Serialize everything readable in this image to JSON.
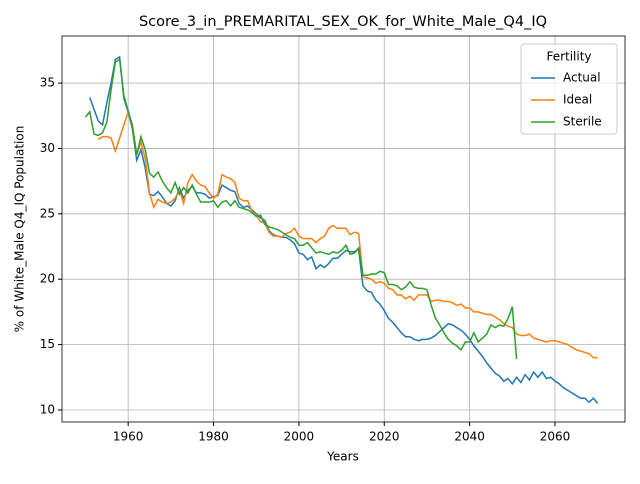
{
  "chart_data": {
    "type": "line",
    "title": "Score_3_in_PREMARITAL_SEX_OK_for_White_Male_Q4_IQ",
    "x_label": "Years",
    "y_label": "% of White_Male Q4_IQ Population",
    "legend_title": "Fertility",
    "legend_position": "upper right",
    "grid": true,
    "xlim": [
      1944.5,
      2076.4
    ],
    "ylim": [
      9.08,
      38.6
    ],
    "xticks": [
      1960,
      1980,
      2000,
      2020,
      2040,
      2060
    ],
    "yticks": [
      10,
      15,
      20,
      25,
      30,
      35
    ],
    "x": [
      1950,
      1951,
      1952,
      1953,
      1954,
      1955,
      1956,
      1957,
      1958,
      1959,
      1960,
      1961,
      1962,
      1963,
      1964,
      1965,
      1966,
      1967,
      1968,
      1969,
      1970,
      1971,
      1972,
      1973,
      1974,
      1975,
      1976,
      1977,
      1978,
      1979,
      1980,
      1981,
      1982,
      1983,
      1984,
      1985,
      1986,
      1987,
      1988,
      1989,
      1990,
      1991,
      1992,
      1993,
      1994,
      1995,
      1996,
      1997,
      1998,
      1999,
      2000,
      2001,
      2002,
      2003,
      2004,
      2005,
      2006,
      2007,
      2008,
      2009,
      2010,
      2011,
      2012,
      2013,
      2014,
      2015,
      2016,
      2017,
      2018,
      2019,
      2020,
      2021,
      2022,
      2023,
      2024,
      2025,
      2026,
      2027,
      2028,
      2029,
      2030,
      2031,
      2032,
      2033,
      2034,
      2035,
      2036,
      2037,
      2038,
      2039,
      2040,
      2041,
      2042,
      2043,
      2044,
      2045,
      2046,
      2047,
      2048,
      2049,
      2050,
      2051,
      2052,
      2053,
      2054,
      2055,
      2056,
      2057,
      2058,
      2059,
      2060,
      2061,
      2062,
      2063,
      2064,
      2065,
      2066,
      2067,
      2068,
      2069,
      2070
    ],
    "series": [
      {
        "name": "Actual",
        "color": "#1f77b4",
        "values": [
          null,
          33.9,
          33.0,
          32.1,
          31.8,
          33.5,
          35.0,
          36.8,
          37.0,
          33.8,
          32.8,
          31.5,
          29.1,
          29.9,
          28.5,
          26.5,
          26.4,
          26.7,
          26.3,
          25.8,
          25.6,
          26.0,
          27.0,
          26.2,
          26.8,
          27.1,
          26.6,
          26.6,
          26.5,
          26.2,
          26.3,
          26.4,
          27.2,
          27.0,
          26.8,
          26.7,
          25.8,
          25.5,
          25.6,
          25.3,
          25.0,
          24.7,
          24.5,
          23.7,
          23.4,
          23.3,
          23.2,
          23.2,
          23.0,
          22.7,
          22.0,
          21.9,
          21.5,
          21.7,
          20.8,
          21.1,
          20.9,
          21.2,
          21.6,
          21.6,
          21.9,
          22.2,
          22.1,
          22.1,
          22.3,
          19.5,
          19.1,
          19.0,
          18.4,
          18.1,
          17.6,
          17.0,
          16.7,
          16.3,
          15.9,
          15.6,
          15.6,
          15.4,
          15.3,
          15.4,
          15.4,
          15.5,
          15.7,
          16.0,
          16.3,
          16.6,
          16.5,
          16.3,
          16.1,
          15.8,
          15.4,
          14.9,
          14.5,
          14.1,
          13.6,
          13.2,
          12.8,
          12.6,
          12.2,
          12.4,
          12.0,
          12.5,
          12.1,
          12.7,
          12.3,
          12.9,
          12.5,
          12.9,
          12.4,
          12.5,
          12.2,
          12.0,
          11.7,
          11.5,
          11.3,
          11.1,
          10.9,
          10.9,
          10.6,
          10.9,
          10.5
        ]
      },
      {
        "name": "Ideal",
        "color": "#ff7f0e",
        "values": [
          null,
          null,
          null,
          30.7,
          30.9,
          30.9,
          30.8,
          29.8,
          30.8,
          31.8,
          32.8,
          31.8,
          29.5,
          30.5,
          29.2,
          26.6,
          25.5,
          26.1,
          25.9,
          25.8,
          25.9,
          26.2,
          26.8,
          25.8,
          27.4,
          28.0,
          27.5,
          27.2,
          27.1,
          26.6,
          26.2,
          26.5,
          28.0,
          27.8,
          27.7,
          27.4,
          26.2,
          26.0,
          26.0,
          25.2,
          24.9,
          24.4,
          24.3,
          23.6,
          23.3,
          23.3,
          23.2,
          23.5,
          23.6,
          23.9,
          23.3,
          23.1,
          23.1,
          23.1,
          22.8,
          23.1,
          23.3,
          23.9,
          24.1,
          23.9,
          23.9,
          23.9,
          23.4,
          23.6,
          23.5,
          20.2,
          20.1,
          20.0,
          19.7,
          19.8,
          19.7,
          19.3,
          19.2,
          18.8,
          18.8,
          18.5,
          18.7,
          18.4,
          18.8,
          18.8,
          18.8,
          18.3,
          18.4,
          18.4,
          18.3,
          18.3,
          18.2,
          18.0,
          18.1,
          17.8,
          17.8,
          17.5,
          17.5,
          17.4,
          17.3,
          17.3,
          17.1,
          16.9,
          16.6,
          16.4,
          16.3,
          15.8,
          15.7,
          15.7,
          15.8,
          15.5,
          15.4,
          15.3,
          15.2,
          15.3,
          15.3,
          15.2,
          15.1,
          15.0,
          14.8,
          14.6,
          14.5,
          14.4,
          14.3,
          14.0,
          14.0
        ]
      },
      {
        "name": "Sterile",
        "color": "#2ca02c",
        "values": [
          32.4,
          32.8,
          31.1,
          31.0,
          31.2,
          32.0,
          34.5,
          36.6,
          36.8,
          34.0,
          32.9,
          31.7,
          29.5,
          30.9,
          29.9,
          28.1,
          27.8,
          28.2,
          27.5,
          27.0,
          26.6,
          27.4,
          26.5,
          27.0,
          26.6,
          27.2,
          26.5,
          25.9,
          25.9,
          25.9,
          26.0,
          25.5,
          25.9,
          26.0,
          25.6,
          26.0,
          25.5,
          25.4,
          25.3,
          25.1,
          24.8,
          24.9,
          24.2,
          24.0,
          23.9,
          23.8,
          23.6,
          23.4,
          23.2,
          23.1,
          22.6,
          22.6,
          22.8,
          22.4,
          22.0,
          22.1,
          22.0,
          21.9,
          22.1,
          22.0,
          22.2,
          22.6,
          21.9,
          22.0,
          22.4,
          20.3,
          20.3,
          20.4,
          20.4,
          20.6,
          20.5,
          19.6,
          19.6,
          19.5,
          19.2,
          19.4,
          19.8,
          19.4,
          19.3,
          19.3,
          19.2,
          18.0,
          17.0,
          16.5,
          15.9,
          15.4,
          15.1,
          14.9,
          14.6,
          15.2,
          15.2,
          15.9,
          15.2,
          15.5,
          15.8,
          16.5,
          16.3,
          16.5,
          16.4,
          17.0,
          17.9,
          13.9,
          null,
          null,
          null,
          null,
          null,
          null,
          null,
          null,
          null,
          null,
          null,
          null,
          null,
          null,
          null,
          null,
          null,
          null,
          null
        ]
      }
    ]
  }
}
